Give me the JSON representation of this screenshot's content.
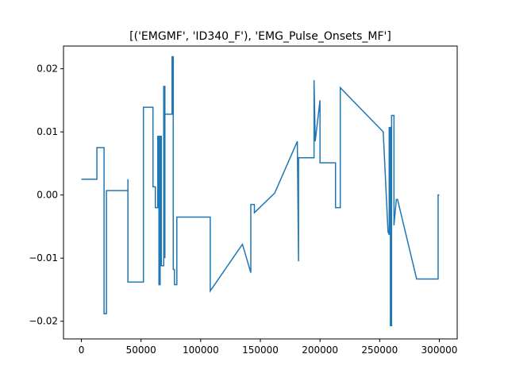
{
  "chart_data": {
    "type": "line",
    "title": "[('EMGMF', 'ID340_F'), 'EMG_Pulse_Onsets_MF']",
    "xlabel": "",
    "ylabel": "",
    "xlim": [
      -15000,
      315000
    ],
    "ylim": [
      -0.0228,
      0.0236
    ],
    "grid": false,
    "x_ticks": [
      0,
      50000,
      100000,
      150000,
      200000,
      250000,
      300000
    ],
    "x_tick_labels": [
      "0",
      "50000",
      "100000",
      "150000",
      "200000",
      "250000",
      "300000"
    ],
    "y_ticks": [
      -0.02,
      -0.01,
      0.0,
      0.01,
      0.02
    ],
    "y_tick_labels": [
      "−0.02",
      "−0.01",
      "0.00",
      "0.01",
      "0.02"
    ],
    "series": [
      {
        "color": "#1f77b4",
        "x": [
          0,
          13000,
          13000,
          19000,
          19000,
          21000,
          21000,
          39000,
          39000,
          39000,
          39000,
          52000,
          52000,
          60000,
          60000,
          62000,
          62000,
          64000,
          64000,
          65000,
          65000,
          66000,
          66000,
          67000,
          67000,
          69000,
          69000,
          70000,
          70000,
          70000,
          70000,
          71000,
          71000,
          76000,
          76000,
          77000,
          77000,
          78000,
          78000,
          80000,
          80000,
          108000,
          108000,
          135000,
          135000,
          142000,
          142000,
          145000,
          145000,
          162000,
          162000,
          181000,
          181000,
          182000,
          182000,
          183000,
          183000,
          195000,
          195000,
          196000,
          196000,
          200000,
          200000,
          213000,
          213000,
          217000,
          217000,
          253000,
          253000,
          257000,
          257000,
          258000,
          258000,
          259000,
          259000,
          260000,
          260000,
          261000,
          261000,
          262000,
          262000,
          264000,
          264000,
          265000,
          265000,
          281000,
          281000,
          299000,
          299000,
          300000
        ],
        "y": [
          0.0025,
          0.0025,
          0.0075,
          0.0075,
          -0.0188,
          -0.0188,
          0.0007,
          0.0007,
          0.0025,
          0.0007,
          -0.0138,
          -0.0138,
          0.0139,
          0.0139,
          0.0013,
          0.0013,
          -0.002,
          -0.002,
          0.0093,
          0.0093,
          -0.0142,
          -0.0142,
          0.0093,
          0.0093,
          -0.0112,
          -0.0112,
          0.0172,
          0.0172,
          -0.01,
          0.0128,
          0.0128,
          0.0128,
          0.0128,
          0.0128,
          0.0219,
          0.0219,
          -0.0118,
          -0.0118,
          -0.0142,
          -0.0142,
          -0.0035,
          -0.0035,
          -0.0152,
          -0.0078,
          -0.0078,
          -0.0123,
          -0.0015,
          -0.0015,
          -0.0028,
          0.0003,
          0.0003,
          0.0085,
          0.0085,
          -0.0105,
          0.0059,
          0.0059,
          0.0059,
          0.0059,
          0.0182,
          0.0085,
          0.0085,
          0.015,
          0.0051,
          0.0051,
          -0.002,
          -0.002,
          0.017,
          0.01,
          0.01,
          -0.0058,
          -0.0058,
          -0.0063,
          0.0107,
          0.0107,
          -0.0207,
          -0.0207,
          0.0126,
          0.0126,
          0.0126,
          0.0126,
          -0.0048,
          -0.0007,
          -0.0007,
          -0.0007,
          -0.0007,
          -0.0133,
          -0.0133,
          -0.0133,
          0.0,
          0.0
        ]
      }
    ]
  }
}
